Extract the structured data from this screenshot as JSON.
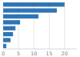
{
  "chart_data": {
    "type": "bar",
    "orientation": "horizontal",
    "categories": [
      null,
      null,
      null,
      null,
      null,
      null,
      null,
      null
    ],
    "values": [
      20.0,
      17.5,
      11.5,
      5.5,
      4.0,
      3.2,
      2.4,
      1.0
    ],
    "color": "#2e75b6",
    "xlim": [
      0,
      24
    ],
    "xticks": [
      0,
      5,
      10,
      15,
      20
    ],
    "grid": true,
    "tick_labels": "x"
  }
}
